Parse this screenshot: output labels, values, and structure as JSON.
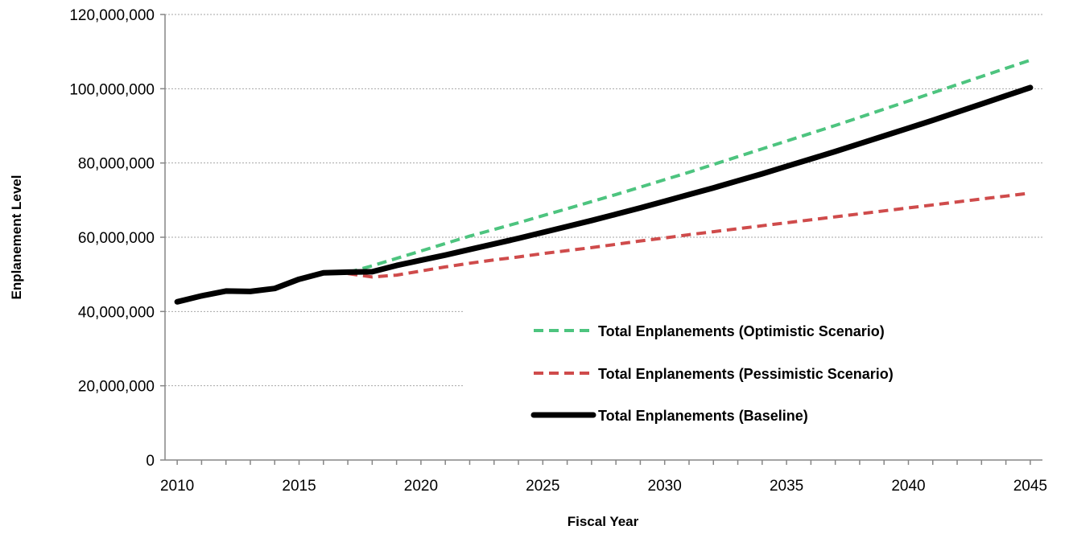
{
  "chart_data": {
    "type": "line",
    "xlabel": "Fiscal Year",
    "ylabel": "Enplanement Level",
    "xlim": [
      2009.5,
      2045.5
    ],
    "ylim": [
      0,
      120000000
    ],
    "x_ticks": [
      2010,
      2015,
      2020,
      2025,
      2030,
      2035,
      2040,
      2045
    ],
    "x_tick_labels": [
      "2010",
      "2015",
      "2020",
      "2025",
      "2030",
      "2035",
      "2040",
      "2045"
    ],
    "y_ticks": [
      0,
      20000000,
      40000000,
      60000000,
      80000000,
      100000000,
      120000000
    ],
    "y_tick_labels": [
      "0",
      "20,000,000",
      "40,000,000",
      "60,000,000",
      "80,000,000",
      "100,000,000",
      "120,000,000"
    ],
    "grid": "horizontal",
    "legend_position": "lower-right",
    "series": [
      {
        "name": "Total Enplanements (Optimistic Scenario)",
        "color": "#4dc47f",
        "style": "dashed",
        "x": [
          2017,
          2018,
          2019,
          2020,
          2021,
          2022,
          2023,
          2024,
          2025,
          2026,
          2027,
          2028,
          2029,
          2030,
          2031,
          2032,
          2033,
          2034,
          2035,
          2036,
          2037,
          2038,
          2039,
          2040,
          2041,
          2042,
          2043,
          2044,
          2045
        ],
        "values": [
          50500000,
          52300000,
          54300000,
          56300000,
          58300000,
          60300000,
          62100000,
          63900000,
          65800000,
          67700000,
          69600000,
          71500000,
          73500000,
          75500000,
          77500000,
          79600000,
          81700000,
          83800000,
          85900000,
          88000000,
          90100000,
          92300000,
          94500000,
          96700000,
          98900000,
          101100000,
          103300000,
          105500000,
          107700000
        ]
      },
      {
        "name": "Total Enplanements (Pessimistic Scenario)",
        "color": "#cf4b4b",
        "style": "dashed",
        "x": [
          2017,
          2018,
          2019,
          2020,
          2021,
          2022,
          2023,
          2024,
          2025,
          2026,
          2027,
          2028,
          2029,
          2030,
          2031,
          2032,
          2033,
          2034,
          2035,
          2036,
          2037,
          2038,
          2039,
          2040,
          2041,
          2042,
          2043,
          2044,
          2045
        ],
        "values": [
          50200000,
          49300000,
          49800000,
          50900000,
          52000000,
          53000000,
          53900000,
          54700000,
          55600000,
          56400000,
          57200000,
          58100000,
          59000000,
          59800000,
          60700000,
          61500000,
          62300000,
          63100000,
          63900000,
          64700000,
          65500000,
          66300000,
          67100000,
          67900000,
          68700000,
          69500000,
          70300000,
          71100000,
          71900000
        ]
      },
      {
        "name": "Total Enplanements (Baseline)",
        "color": "#000000",
        "style": "solid",
        "x": [
          2010,
          2011,
          2012,
          2013,
          2014,
          2015,
          2016,
          2017,
          2018,
          2019,
          2020,
          2021,
          2022,
          2023,
          2024,
          2025,
          2026,
          2027,
          2028,
          2029,
          2030,
          2031,
          2032,
          2033,
          2034,
          2035,
          2036,
          2037,
          2038,
          2039,
          2040,
          2041,
          2042,
          2043,
          2044,
          2045
        ],
        "values": [
          42600000,
          44200000,
          45500000,
          45400000,
          46200000,
          48700000,
          50400000,
          50600000,
          50700000,
          52400000,
          53800000,
          55200000,
          56700000,
          58200000,
          59700000,
          61300000,
          62900000,
          64500000,
          66200000,
          67900000,
          69700000,
          71500000,
          73300000,
          75200000,
          77100000,
          79100000,
          81100000,
          83100000,
          85200000,
          87300000,
          89400000,
          91500000,
          93700000,
          95900000,
          98100000,
          100300000
        ]
      }
    ]
  }
}
